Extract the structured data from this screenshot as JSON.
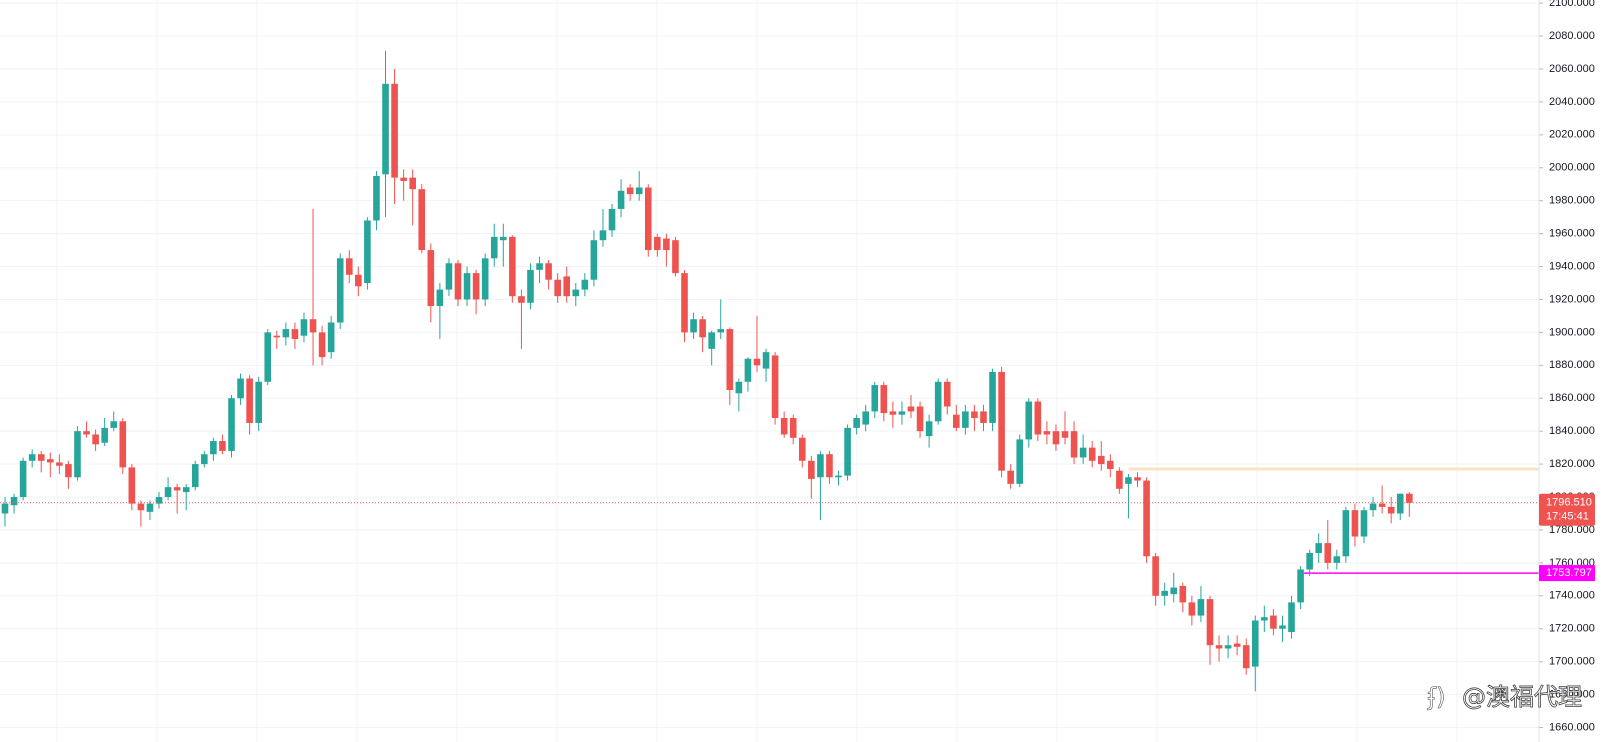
{
  "chart_data": {
    "type": "candlestick",
    "up_color": "#26a69a",
    "down_color": "#ef5350",
    "ylim": [
      1651.2,
      2101.9
    ],
    "yticks": [
      {
        "value": 1660,
        "label": "1660.000"
      },
      {
        "value": 1680,
        "label": "1680.000"
      },
      {
        "value": 1700,
        "label": "1700.000"
      },
      {
        "value": 1720,
        "label": "1720.000"
      },
      {
        "value": 1740,
        "label": "1740.000"
      },
      {
        "value": 1760,
        "label": "1760.000"
      },
      {
        "value": 1780,
        "label": "1780.000"
      },
      {
        "value": 1800,
        "label": "1800.000"
      },
      {
        "value": 1820,
        "label": "1820.000"
      },
      {
        "value": 1840,
        "label": "1840.000"
      },
      {
        "value": 1860,
        "label": "1860.000"
      },
      {
        "value": 1880,
        "label": "1880.000"
      },
      {
        "value": 1900,
        "label": "1900.000"
      },
      {
        "value": 1920,
        "label": "1920.000"
      },
      {
        "value": 1940,
        "label": "1940.000"
      },
      {
        "value": 1960,
        "label": "1960.000"
      },
      {
        "value": 1980,
        "label": "1980.000"
      },
      {
        "value": 2000,
        "label": "2000.000"
      },
      {
        "value": 2020,
        "label": "2020.000"
      },
      {
        "value": 2040,
        "label": "2040.000"
      },
      {
        "value": 2060,
        "label": "2060.000"
      },
      {
        "value": 2080,
        "label": "2080.000"
      },
      {
        "value": 2100,
        "label": "2100.000"
      }
    ],
    "grid": true,
    "ohlc": [
      [
        1790,
        1800,
        1782,
        1796
      ],
      [
        1795,
        1802,
        1790,
        1800
      ],
      [
        1800,
        1824,
        1798,
        1822
      ],
      [
        1822,
        1829,
        1818,
        1826
      ],
      [
        1826,
        1828,
        1815,
        1822
      ],
      [
        1823,
        1827,
        1812,
        1821
      ],
      [
        1821,
        1826,
        1814,
        1819
      ],
      [
        1820,
        1822,
        1805,
        1812
      ],
      [
        1812,
        1843,
        1810,
        1840
      ],
      [
        1840,
        1846,
        1836,
        1838
      ],
      [
        1838,
        1841,
        1828,
        1832
      ],
      [
        1833,
        1848,
        1831,
        1842
      ],
      [
        1842,
        1852,
        1840,
        1846
      ],
      [
        1846,
        1848,
        1814,
        1818
      ],
      [
        1818,
        1820,
        1792,
        1796
      ],
      [
        1796,
        1798,
        1782,
        1792
      ],
      [
        1791,
        1798,
        1786,
        1796
      ],
      [
        1796,
        1803,
        1793,
        1800
      ],
      [
        1800,
        1812,
        1798,
        1806
      ],
      [
        1806,
        1808,
        1790,
        1804
      ],
      [
        1803,
        1808,
        1792,
        1806
      ],
      [
        1806,
        1822,
        1804,
        1820
      ],
      [
        1820,
        1828,
        1818,
        1826
      ],
      [
        1826,
        1836,
        1822,
        1834
      ],
      [
        1834,
        1838,
        1826,
        1828
      ],
      [
        1828,
        1862,
        1824,
        1860
      ],
      [
        1860,
        1875,
        1856,
        1872
      ],
      [
        1872,
        1874,
        1838,
        1845
      ],
      [
        1845,
        1873,
        1840,
        1870
      ],
      [
        1870,
        1902,
        1868,
        1900
      ],
      [
        1898,
        1901,
        1890,
        1897
      ],
      [
        1897,
        1906,
        1892,
        1902
      ],
      [
        1902,
        1906,
        1890,
        1896
      ],
      [
        1898,
        1912,
        1894,
        1908
      ],
      [
        1908,
        1975,
        1880,
        1900
      ],
      [
        1900,
        1904,
        1880,
        1885
      ],
      [
        1888,
        1910,
        1884,
        1906
      ],
      [
        1906,
        1948,
        1902,
        1945
      ],
      [
        1945,
        1950,
        1930,
        1935
      ],
      [
        1935,
        1940,
        1922,
        1928
      ],
      [
        1930,
        1970,
        1926,
        1968
      ],
      [
        1968,
        1998,
        1962,
        1995
      ],
      [
        1996,
        2071,
        1970,
        2051
      ],
      [
        2051,
        2060,
        1978,
        1994
      ],
      [
        1994,
        1999,
        1980,
        1992
      ],
      [
        1994,
        1999,
        1965,
        1987
      ],
      [
        1987,
        1990,
        1948,
        1950
      ],
      [
        1950,
        1954,
        1906,
        1916
      ],
      [
        1916,
        1930,
        1896,
        1926
      ],
      [
        1926,
        1945,
        1922,
        1942
      ],
      [
        1942,
        1944,
        1916,
        1920
      ],
      [
        1920,
        1940,
        1916,
        1936
      ],
      [
        1936,
        1938,
        1911,
        1920
      ],
      [
        1920,
        1948,
        1916,
        1945
      ],
      [
        1945,
        1966,
        1940,
        1958
      ],
      [
        1956,
        1966,
        1940,
        1958
      ],
      [
        1958,
        1959,
        1918,
        1922
      ],
      [
        1922,
        1926,
        1890,
        1918
      ],
      [
        1918,
        1942,
        1914,
        1938
      ],
      [
        1938,
        1946,
        1930,
        1942
      ],
      [
        1942,
        1944,
        1926,
        1932
      ],
      [
        1932,
        1936,
        1918,
        1922
      ],
      [
        1934,
        1940,
        1918,
        1922
      ],
      [
        1922,
        1930,
        1916,
        1926
      ],
      [
        1926,
        1936,
        1922,
        1932
      ],
      [
        1932,
        1962,
        1928,
        1956
      ],
      [
        1956,
        1975,
        1952,
        1962
      ],
      [
        1962,
        1978,
        1958,
        1975
      ],
      [
        1975,
        1993,
        1970,
        1986
      ],
      [
        1988,
        1990,
        1980,
        1984
      ],
      [
        1984,
        1998,
        1980,
        1988
      ],
      [
        1988,
        1990,
        1946,
        1950
      ],
      [
        1958,
        1960,
        1946,
        1950
      ],
      [
        1957,
        1960,
        1940,
        1950
      ],
      [
        1956,
        1958,
        1934,
        1936
      ],
      [
        1936,
        1938,
        1894,
        1900
      ],
      [
        1900,
        1912,
        1896,
        1908
      ],
      [
        1908,
        1910,
        1888,
        1897
      ],
      [
        1890,
        1901,
        1880,
        1900
      ],
      [
        1900,
        1920,
        1896,
        1902
      ],
      [
        1902,
        1903,
        1856,
        1865
      ],
      [
        1863,
        1872,
        1852,
        1870
      ],
      [
        1870,
        1885,
        1864,
        1884
      ],
      [
        1884,
        1910,
        1876,
        1880
      ],
      [
        1878,
        1890,
        1870,
        1888
      ],
      [
        1886,
        1888,
        1844,
        1848
      ],
      [
        1848,
        1852,
        1836,
        1838
      ],
      [
        1848,
        1850,
        1832,
        1836
      ],
      [
        1836,
        1838,
        1818,
        1822
      ],
      [
        1822,
        1825,
        1799,
        1811
      ],
      [
        1812,
        1828,
        1786,
        1826
      ],
      [
        1826,
        1828,
        1808,
        1812
      ],
      [
        1812,
        1816,
        1807,
        1813
      ],
      [
        1813,
        1844,
        1810,
        1842
      ],
      [
        1842,
        1850,
        1838,
        1848
      ],
      [
        1844,
        1856,
        1840,
        1852
      ],
      [
        1852,
        1870,
        1848,
        1868
      ],
      [
        1868,
        1870,
        1846,
        1851
      ],
      [
        1852,
        1858,
        1842,
        1850
      ],
      [
        1850,
        1858,
        1844,
        1852
      ],
      [
        1855,
        1862,
        1848,
        1852
      ],
      [
        1855,
        1858,
        1836,
        1840
      ],
      [
        1837,
        1850,
        1830,
        1846
      ],
      [
        1846,
        1872,
        1844,
        1870
      ],
      [
        1870,
        1872,
        1850,
        1855
      ],
      [
        1850,
        1856,
        1840,
        1842
      ],
      [
        1842,
        1856,
        1838,
        1852
      ],
      [
        1852,
        1856,
        1840,
        1848
      ],
      [
        1852,
        1856,
        1840,
        1845
      ],
      [
        1845,
        1878,
        1840,
        1876
      ],
      [
        1876,
        1879,
        1812,
        1816
      ],
      [
        1816,
        1820,
        1805,
        1808
      ],
      [
        1808,
        1838,
        1806,
        1835
      ],
      [
        1835,
        1860,
        1830,
        1858
      ],
      [
        1858,
        1860,
        1834,
        1838
      ],
      [
        1840,
        1846,
        1832,
        1838
      ],
      [
        1840,
        1844,
        1828,
        1832
      ],
      [
        1840,
        1852,
        1832,
        1836
      ],
      [
        1840,
        1846,
        1820,
        1824
      ],
      [
        1824,
        1838,
        1820,
        1830
      ],
      [
        1830,
        1834,
        1818,
        1822
      ],
      [
        1825,
        1834,
        1816,
        1820
      ],
      [
        1822,
        1826,
        1812,
        1817
      ],
      [
        1816,
        1818,
        1802,
        1805
      ],
      [
        1808,
        1814,
        1787,
        1812
      ],
      [
        1812,
        1815,
        1806,
        1810
      ],
      [
        1810,
        1812,
        1760,
        1764
      ],
      [
        1764,
        1766,
        1734,
        1740
      ],
      [
        1740,
        1748,
        1734,
        1743
      ],
      [
        1741,
        1754,
        1736,
        1745
      ],
      [
        1746,
        1748,
        1730,
        1736
      ],
      [
        1736,
        1740,
        1722,
        1728
      ],
      [
        1728,
        1746,
        1724,
        1738
      ],
      [
        1738,
        1740,
        1698,
        1710
      ],
      [
        1710,
        1716,
        1700,
        1708
      ],
      [
        1708,
        1716,
        1702,
        1710
      ],
      [
        1711,
        1716,
        1704,
        1709
      ],
      [
        1710,
        1714,
        1692,
        1696
      ],
      [
        1697,
        1728,
        1682,
        1725
      ],
      [
        1725,
        1734,
        1718,
        1727
      ],
      [
        1728,
        1732,
        1716,
        1720
      ],
      [
        1720,
        1728,
        1712,
        1722
      ],
      [
        1718,
        1740,
        1714,
        1736
      ],
      [
        1736,
        1758,
        1732,
        1756
      ],
      [
        1756,
        1768,
        1752,
        1766
      ],
      [
        1766,
        1778,
        1760,
        1772
      ],
      [
        1772,
        1786,
        1756,
        1760
      ],
      [
        1760,
        1768,
        1756,
        1764
      ],
      [
        1764,
        1794,
        1760,
        1792
      ],
      [
        1792,
        1796,
        1770,
        1776
      ],
      [
        1776,
        1794,
        1772,
        1792
      ],
      [
        1792,
        1800,
        1788,
        1796
      ],
      [
        1796,
        1807,
        1790,
        1794
      ],
      [
        1794,
        1800,
        1784,
        1790
      ],
      [
        1790,
        1802,
        1786,
        1802
      ],
      [
        1802,
        1803,
        1788,
        1796.51
      ]
    ],
    "current_price": {
      "value": 1796.51,
      "label": "1796.510",
      "countdown": "17:45:41",
      "color": "#ef5350"
    },
    "horizontal_lines": [
      {
        "value": 1753.797,
        "label": "1753.797",
        "color": "#ff00ff",
        "from_index": 143
      },
      {
        "value": 1817,
        "color": "#fbe3c2",
        "from_index": 124
      }
    ],
    "watermark": "@澳福代理"
  }
}
